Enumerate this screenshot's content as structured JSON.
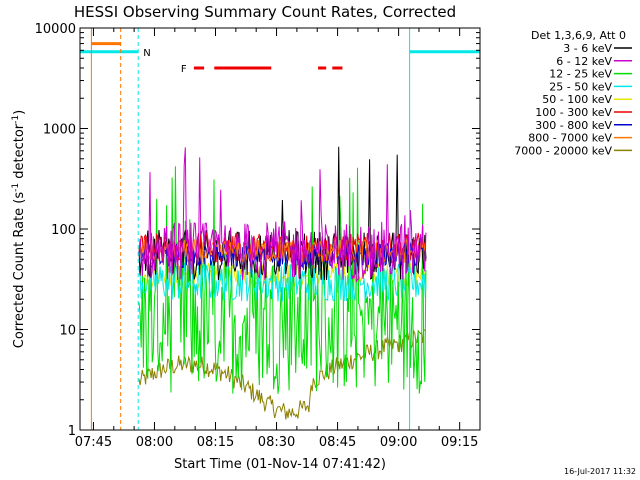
{
  "chart_data": {
    "type": "line",
    "title": "HESSI Observing Summary Count Rates, Corrected",
    "xlabel": "Start Time (01-Nov-14 07:41:42)",
    "ylabel_main": "Corrected Count Rate (s",
    "ylabel_sup": "-1",
    "ylabel_mid": " detector",
    "ylabel_sup2": "-1",
    "ylabel_end": ")",
    "x_range_minutes": [
      0,
      98.3
    ],
    "x_ticks": [
      {
        "label": "07:45",
        "min": 3.3
      },
      {
        "label": "08:00",
        "min": 18.3
      },
      {
        "label": "08:15",
        "min": 33.3
      },
      {
        "label": "08:30",
        "min": 48.3
      },
      {
        "label": "08:45",
        "min": 63.3
      },
      {
        "label": "09:00",
        "min": 78.3
      },
      {
        "label": "09:15",
        "min": 93.3
      }
    ],
    "y_scale": "log",
    "ylim": [
      1,
      10000
    ],
    "y_ticks": [
      "1",
      "10",
      "100",
      "1000",
      "10000"
    ],
    "legend_header": "Det 1,3,6,9, Att 0",
    "series": [
      {
        "name": "3 - 6 keV",
        "color": "#000000",
        "level": 55,
        "spread": 0.25
      },
      {
        "name": "6 - 12 keV",
        "color": "#cc00cc",
        "level": 60,
        "spread": 0.3
      },
      {
        "name": "12 - 25 keV",
        "color": "#00dd00",
        "level": 12,
        "spread": 0.45
      },
      {
        "name": "25 - 50 keV",
        "color": "#00e8e8",
        "level": 30,
        "spread": 0.2
      },
      {
        "name": "50 - 100 keV",
        "color": "#e6e600",
        "level": 35,
        "spread": 0.12
      },
      {
        "name": "100 - 300 keV",
        "color": "#ee0000",
        "level": 65,
        "spread": 0.15
      },
      {
        "name": "300 - 800 keV",
        "color": "#0000cc",
        "level": 55,
        "spread": 0.12
      },
      {
        "name": "800 - 7000 keV",
        "color": "#ff7700",
        "level": 60,
        "spread": 0.12
      },
      {
        "name": "7000 - 20000 keV",
        "color": "#8b8000",
        "level": 3,
        "spread": 0.1
      }
    ],
    "data_interval_minutes": [
      14.5,
      85
    ],
    "flag_F_label": "F",
    "flag_N_label": "N",
    "flags": {
      "F": [
        [
          28,
          30.5
        ],
        [
          33,
          47
        ],
        [
          58.5,
          60.5
        ],
        [
          62,
          64.5
        ]
      ]
    },
    "night_intervals": [
      [
        0,
        14.3
      ],
      [
        81,
        98.3
      ]
    ],
    "saa_interval": [
      2.8,
      10
    ],
    "timestamp": "16-Jul-2017 11:32"
  }
}
